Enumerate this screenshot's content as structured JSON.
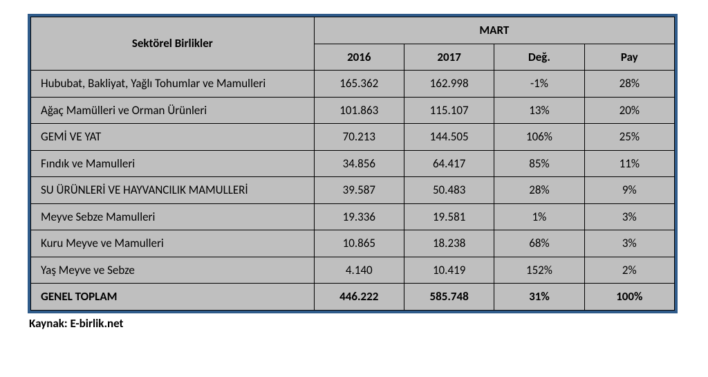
{
  "table": {
    "type": "table",
    "border_color": "#2f5b8a",
    "cell_bg": "#bfbfbf",
    "cell_border": "#000000",
    "columns": {
      "row_label_header": "Sektörel Birlikler",
      "group_header": "MART",
      "subheaders": [
        "2016",
        "2017",
        "Değ.",
        "Pay"
      ]
    },
    "rows": [
      {
        "label": "Hububat, Bakliyat, Yağlı Tohumlar ve Mamulleri",
        "v2016": "165.362",
        "v2017": "162.998",
        "chg": "-1%",
        "share": "28%"
      },
      {
        "label": "Ağaç Mamülleri ve Orman Ürünleri",
        "v2016": "101.863",
        "v2017": "115.107",
        "chg": "13%",
        "share": "20%"
      },
      {
        "label": "GEMİ VE YAT",
        "v2016": "70.213",
        "v2017": "144.505",
        "chg": "106%",
        "share": "25%"
      },
      {
        "label": "Fındık ve Mamulleri",
        "v2016": "34.856",
        "v2017": "64.417",
        "chg": "85%",
        "share": "11%"
      },
      {
        "label": "SU ÜRÜNLERİ VE HAYVANCILIK MAMULLERİ",
        "v2016": "39.587",
        "v2017": "50.483",
        "chg": "28%",
        "share": "9%"
      },
      {
        "label": "Meyve Sebze Mamulleri",
        "v2016": "19.336",
        "v2017": "19.581",
        "chg": "1%",
        "share": "3%"
      },
      {
        "label": "Kuru Meyve ve Mamulleri",
        "v2016": "10.865",
        "v2017": "18.238",
        "chg": "68%",
        "share": "3%"
      },
      {
        "label": "Yaş Meyve ve Sebze",
        "v2016": "4.140",
        "v2017": "10.419",
        "chg": "152%",
        "share": "2%"
      }
    ],
    "total": {
      "label": "GENEL TOPLAM",
      "v2016": "446.222",
      "v2017": "585.748",
      "chg": "31%",
      "share": "100%"
    }
  },
  "source": {
    "prefix": "Kaynak: ",
    "text": "E-birlik.net"
  }
}
